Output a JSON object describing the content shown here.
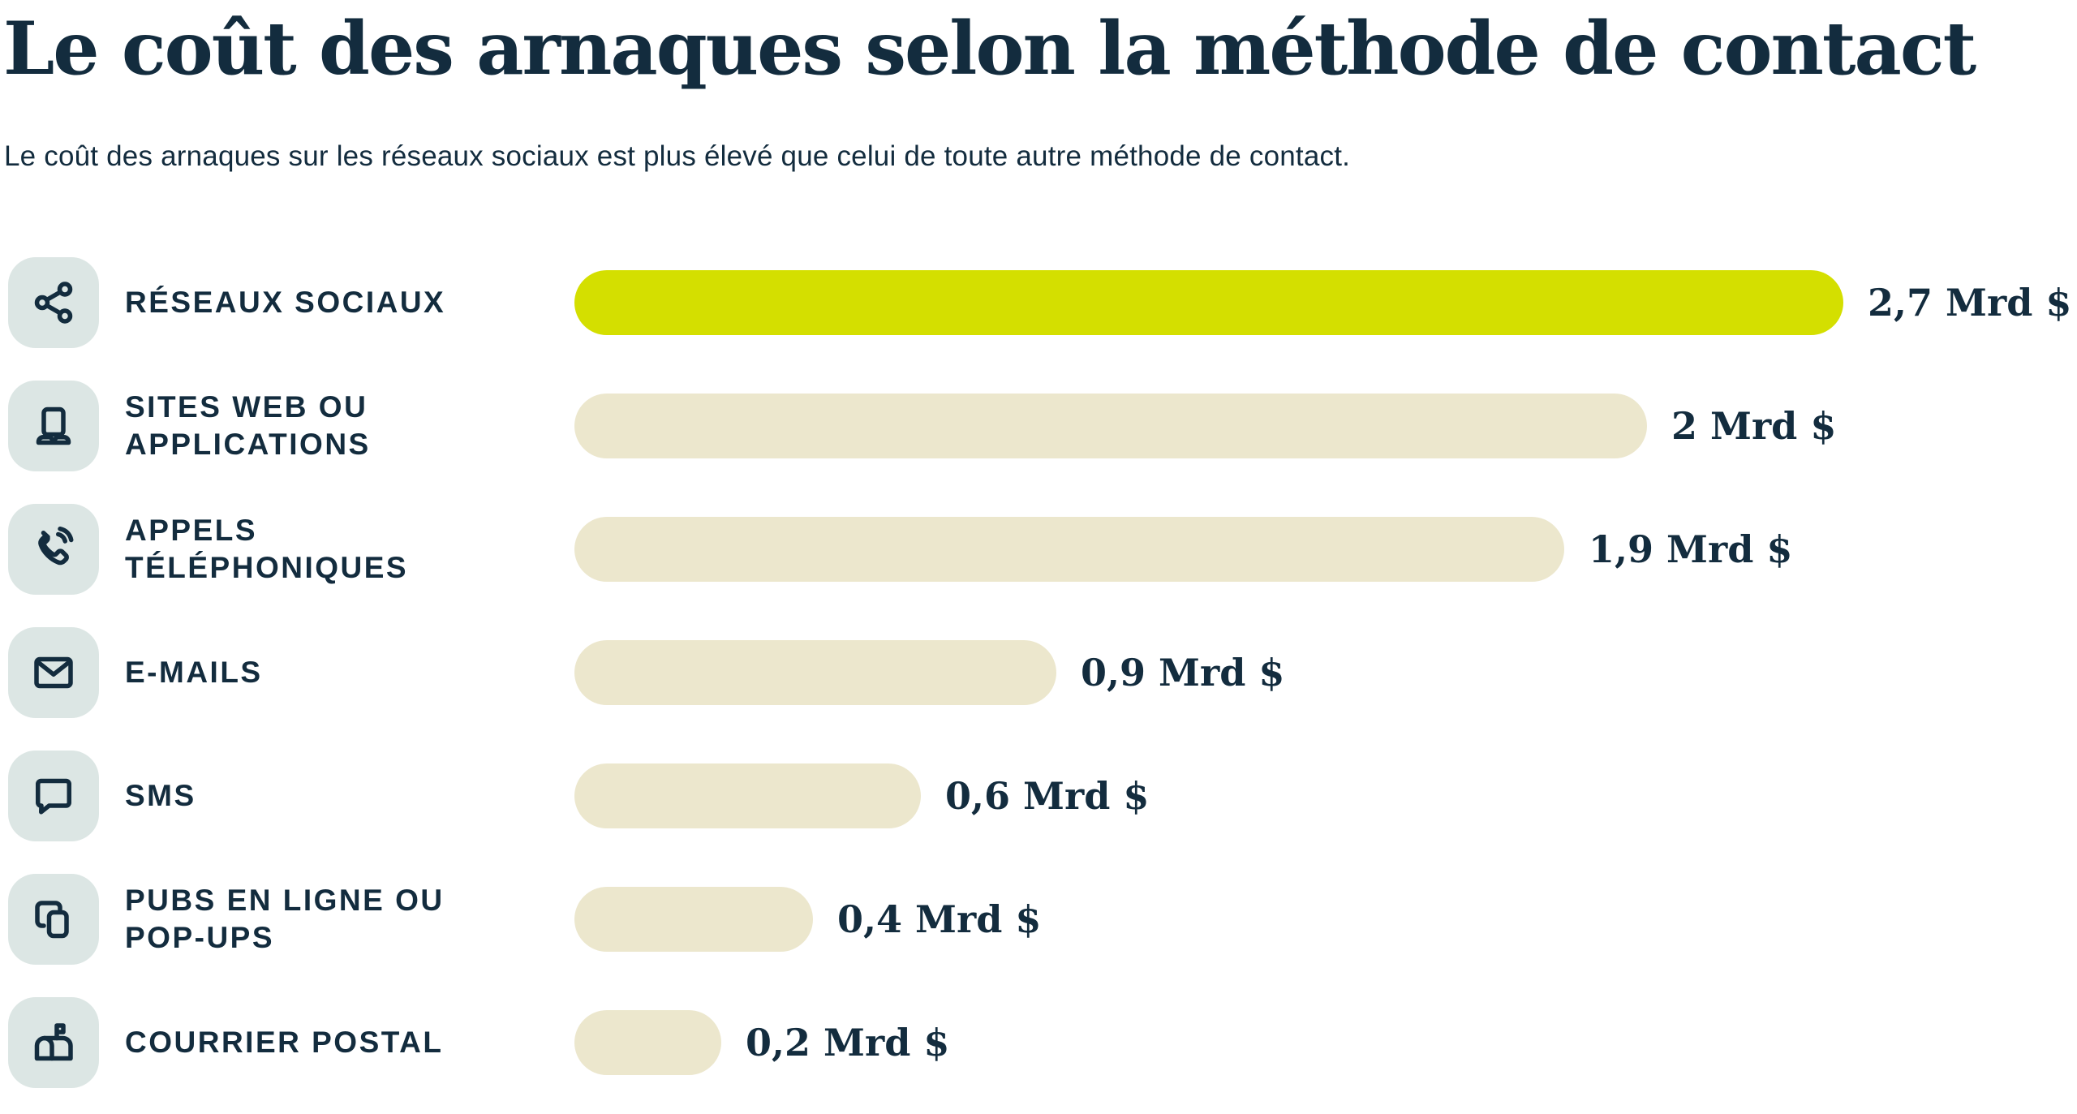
{
  "page": {
    "title": "Le coût des arnaques selon la méthode de contact",
    "subtitle": "Le coût des arnaques sur les réseaux sociaux est plus élevé que celui de toute autre méthode de contact."
  },
  "colors": {
    "text_navy": "#132c3e",
    "bar_highlight_lime": "#d4df00",
    "bar_default_beige": "#ece7cd",
    "icon_tile_background": "#dce6e4",
    "page_background": "#ffffff"
  },
  "chart_data": {
    "type": "bar",
    "orientation": "horizontal",
    "title": "Le coût des arnaques selon la méthode de contact",
    "subtitle": "Le coût des arnaques sur les réseaux sociaux est plus élevé que celui de toute autre méthode de contact.",
    "unit": "Mrd $",
    "xlim": [
      0,
      2.7
    ],
    "grid": false,
    "legend": false,
    "highlight_category": "RÉSEAUX SOCIAUX",
    "categories": [
      "RÉSEAUX SOCIAUX",
      "SITES WEB OU APPLICATIONS",
      "APPELS TÉLÉPHONIQUES",
      "E-MAILS",
      "SMS",
      "PUBS EN LIGNE OU POP-UPS",
      "COURRIER POSTAL"
    ],
    "values": [
      2.7,
      2,
      1.9,
      0.9,
      0.6,
      0.4,
      0.2
    ],
    "value_labels": [
      "2,7 Mrd $",
      "2 Mrd $",
      "1,9 Mrd $",
      "0,9 Mrd $",
      "0,6 Mrd $",
      "0,4 Mrd $",
      "0,2 Mrd $"
    ],
    "rows": [
      {
        "label_lines": [
          "RÉSEAUX SOCIAUX"
        ],
        "icon": "share-icon",
        "value": 2.7,
        "value_label": "2,7 Mrd $",
        "bar_pct": 100,
        "highlighted": true
      },
      {
        "label_lines": [
          "SITES WEB OU",
          "APPLICATIONS"
        ],
        "icon": "laptop-icon",
        "value": 2,
        "value_label": "2 Mrd $",
        "bar_pct": 84.5,
        "highlighted": false
      },
      {
        "label_lines": [
          "APPELS",
          "TÉLÉPHONIQUES"
        ],
        "icon": "phone-call-icon",
        "value": 1.9,
        "value_label": "1,9 Mrd $",
        "bar_pct": 78,
        "highlighted": false
      },
      {
        "label_lines": [
          "E-MAILS"
        ],
        "icon": "envelope-icon",
        "value": 0.9,
        "value_label": "0,9 Mrd $",
        "bar_pct": 38,
        "highlighted": false
      },
      {
        "label_lines": [
          "SMS"
        ],
        "icon": "speech-bubble-icon",
        "value": 0.6,
        "value_label": "0,6 Mrd $",
        "bar_pct": 27.3,
        "highlighted": false
      },
      {
        "label_lines": [
          "PUBS EN LIGNE OU",
          "POP-UPS"
        ],
        "icon": "popup-windows-icon",
        "value": 0.4,
        "value_label": "0,4 Mrd $",
        "bar_pct": 18.8,
        "highlighted": false
      },
      {
        "label_lines": [
          "COURRIER POSTAL"
        ],
        "icon": "mailbox-icon",
        "value": 0.2,
        "value_label": "0,2 Mrd $",
        "bar_pct": 11.6,
        "highlighted": false
      }
    ]
  }
}
